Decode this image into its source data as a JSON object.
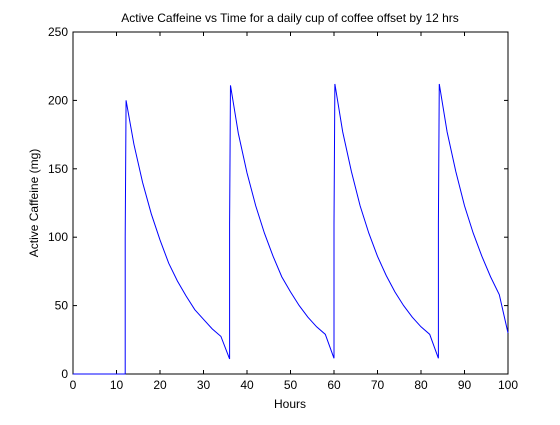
{
  "chart_data": {
    "type": "line",
    "title": "Active Caffeine vs Time for a daily cup of coffee offset by 12 hrs",
    "xlabel": "Hours",
    "ylabel": "Active Caffeine (mg)",
    "xlim": [
      0,
      100
    ],
    "ylim": [
      0,
      250
    ],
    "xticks": [
      0,
      10,
      20,
      30,
      40,
      50,
      60,
      70,
      80,
      90,
      100
    ],
    "yticks": [
      0,
      50,
      100,
      150,
      200,
      250
    ],
    "grid": false,
    "legend": "none",
    "line_color": "#0000ff",
    "series": [
      {
        "x": [
          0,
          12,
          12,
          12.2,
          14,
          16,
          18,
          20,
          22,
          24,
          26,
          28,
          30,
          32,
          34,
          36,
          36,
          36.2,
          38,
          40,
          42,
          44,
          46,
          48,
          50,
          52,
          54,
          56,
          58,
          60,
          60,
          60.2,
          62,
          64,
          66,
          68,
          70,
          72,
          74,
          76,
          78,
          80,
          82,
          84,
          84,
          84.2,
          86,
          88,
          90,
          92,
          94,
          96,
          98,
          100
        ],
        "y": [
          0,
          0,
          100,
          200,
          168,
          140,
          117,
          98,
          81,
          68,
          57,
          47,
          40,
          33,
          27.5,
          11,
          110,
          211,
          176,
          147,
          123,
          103,
          86,
          71,
          60,
          50,
          41.5,
          34.5,
          29,
          11.5,
          110,
          212,
          177,
          148,
          123,
          103,
          86,
          72,
          60,
          50,
          41.5,
          34.5,
          29,
          11.5,
          110,
          212,
          177,
          148,
          123,
          103,
          86,
          71,
          58,
          30
        ]
      }
    ]
  }
}
